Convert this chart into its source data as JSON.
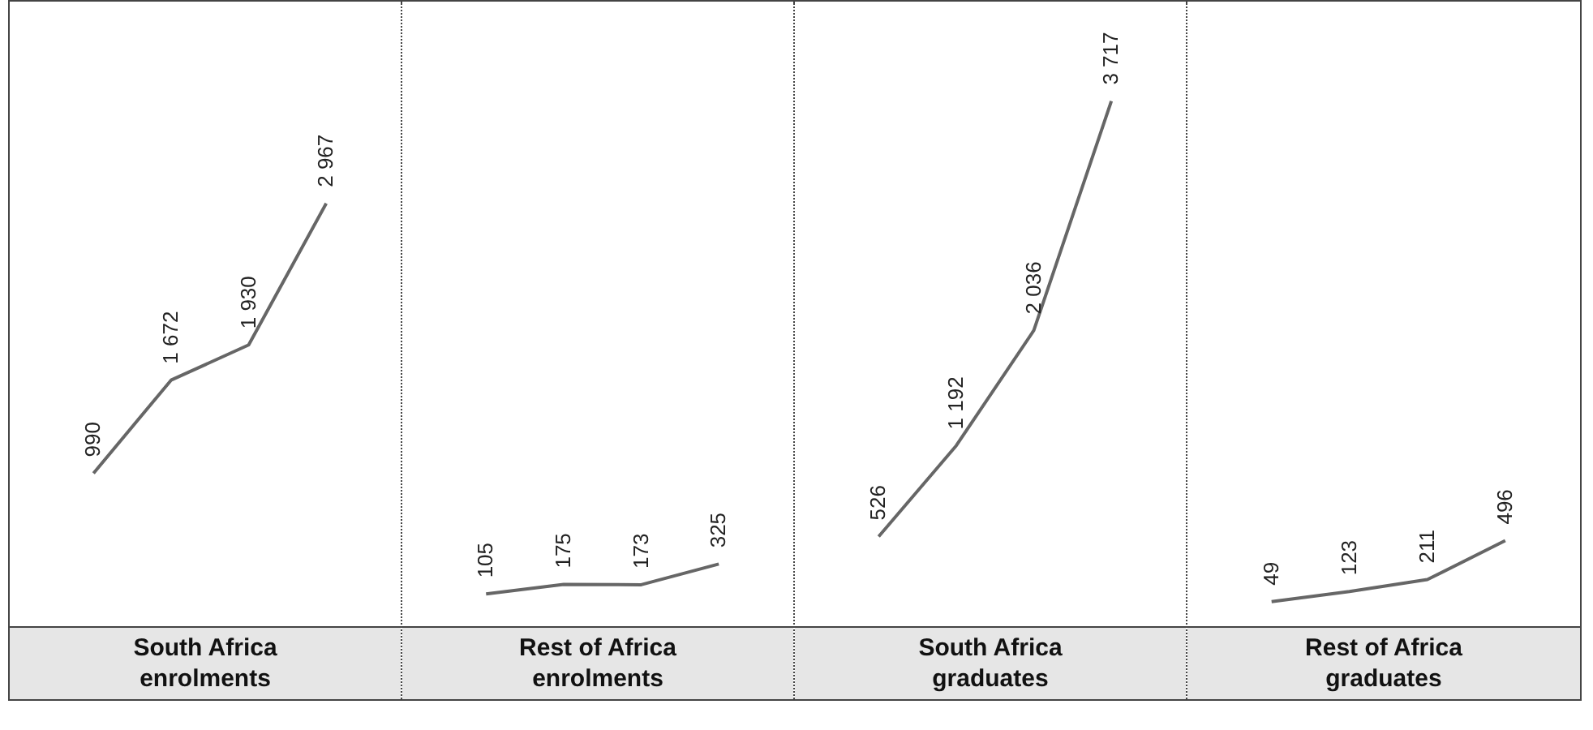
{
  "chart_data": [
    {
      "type": "line",
      "xlabel": "South Africa enrolments",
      "categories": [
        null,
        null,
        null,
        null
      ],
      "values": [
        990,
        1672,
        1930,
        2967
      ],
      "value_labels": [
        "990",
        "1 672",
        "1 930",
        "2 967"
      ],
      "color": "#666666"
    },
    {
      "type": "line",
      "xlabel": "Rest of Africa enrolments",
      "categories": [
        null,
        null,
        null,
        null
      ],
      "values": [
        105,
        175,
        173,
        325
      ],
      "value_labels": [
        "105",
        "175",
        "173",
        "325"
      ],
      "color": "#666666"
    },
    {
      "type": "line",
      "xlabel": "South Africa graduates",
      "categories": [
        null,
        null,
        null,
        null
      ],
      "values": [
        526,
        1192,
        2036,
        3717
      ],
      "value_labels": [
        "526",
        "1 192",
        "2 036",
        "3 717"
      ],
      "color": "#666666"
    },
    {
      "type": "line",
      "xlabel": "Rest of Africa graduates",
      "categories": [
        null,
        null,
        null,
        null
      ],
      "values": [
        49,
        123,
        211,
        496
      ],
      "value_labels": [
        "49",
        "123",
        "211",
        "496"
      ],
      "color": "#666666"
    }
  ]
}
